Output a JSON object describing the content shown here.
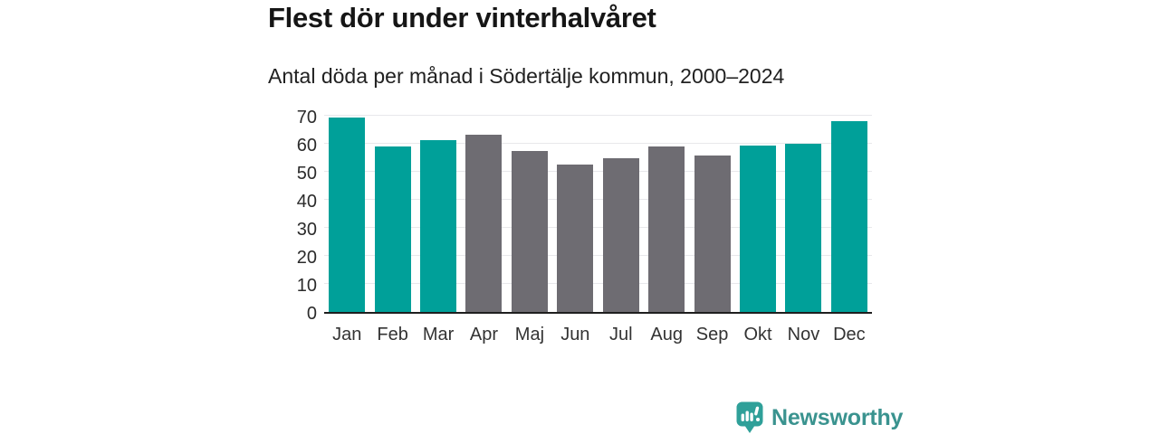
{
  "header": {
    "title": "Flest dör under vinterhalvåret",
    "subtitle": "Antal döda per månad i Södertälje kommun, 2000–2024"
  },
  "chart_data": {
    "type": "bar",
    "categories": [
      "Jan",
      "Feb",
      "Mar",
      "Apr",
      "Maj",
      "Jun",
      "Jul",
      "Aug",
      "Sep",
      "Okt",
      "Nov",
      "Dec"
    ],
    "values": [
      69.5,
      59.1,
      61.3,
      63.1,
      57.4,
      52.6,
      54.8,
      58.9,
      55.7,
      59.5,
      59.9,
      68.1
    ],
    "winter_months": [
      "Jan",
      "Feb",
      "Mar",
      "Okt",
      "Nov",
      "Dec"
    ],
    "title": "Flest dör under vinterhalvåret",
    "xlabel": "",
    "ylabel": "",
    "ylim": [
      0,
      70
    ],
    "yticks": [
      0,
      10,
      20,
      30,
      40,
      50,
      60,
      70
    ],
    "grid": "horizontal",
    "legend": "none",
    "colors": {
      "winter_bar": "#00a099",
      "summer_bar": "#6e6c72",
      "gridline": "#e8e8eb",
      "axis_line": "#1f1f1f"
    }
  },
  "footer": {
    "brand": "Newsworthy",
    "brand_color": "#3a938f",
    "logo_icon": "bar-chart-speech-bubble-icon"
  }
}
